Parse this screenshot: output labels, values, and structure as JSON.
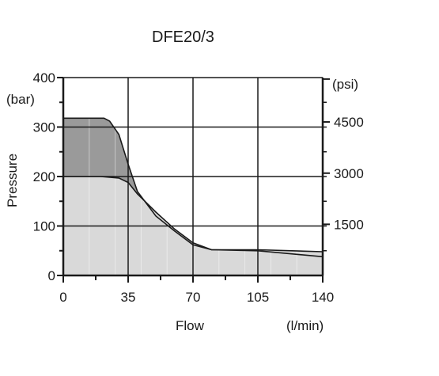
{
  "chart_data": {
    "type": "area",
    "title": "DFE20/3",
    "xlabel": "Flow",
    "xunit": "(l/min)",
    "ylabel": "Pressure",
    "yunit_left": "(bar)",
    "yunit_right": "(psi)",
    "xlim": [
      0,
      140
    ],
    "ylim": [
      0,
      400
    ],
    "x_ticks": [
      "0",
      "35",
      "70",
      "105",
      "140"
    ],
    "y_ticks_left": [
      "0",
      "100",
      "200",
      "300",
      "400"
    ],
    "y_ticks_right": [
      {
        "label": "1500",
        "bar": 103.4
      },
      {
        "label": "3000",
        "bar": 206.8
      },
      {
        "label": "4500",
        "bar": 310.3
      }
    ],
    "grid": true,
    "series": [
      {
        "values": [
          [
            0,
            318
          ],
          [
            12,
            318
          ],
          [
            22,
            318
          ],
          [
            25,
            312
          ],
          [
            30,
            285
          ],
          [
            35,
            225
          ],
          [
            40,
            170
          ],
          [
            50,
            120
          ],
          [
            60,
            90
          ],
          [
            70,
            62
          ],
          [
            80,
            52
          ],
          [
            105,
            50
          ],
          [
            140,
            38
          ]
        ],
        "fill": "#9a9a9a"
      },
      {
        "values": [
          [
            0,
            200
          ],
          [
            20,
            200
          ],
          [
            30,
            197
          ],
          [
            35,
            188
          ],
          [
            40,
            165
          ],
          [
            50,
            128
          ],
          [
            60,
            94
          ],
          [
            70,
            66
          ],
          [
            80,
            52
          ],
          [
            105,
            52
          ],
          [
            140,
            48
          ]
        ],
        "fill": "#d9d9d9"
      }
    ]
  }
}
